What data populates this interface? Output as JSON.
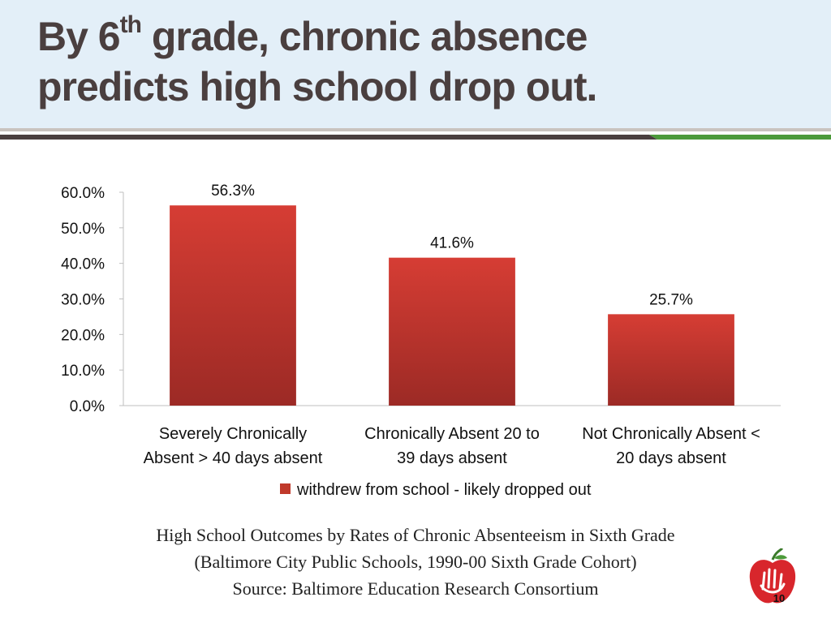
{
  "slide": {
    "title_part1": "By 6",
    "title_sup": "th",
    "title_part2": " grade, chronic absence",
    "title_line2": "predicts high school drop out.",
    "page_number": "10",
    "colors": {
      "header_bg": "#e3eff8",
      "title": "#4a3f3f",
      "rule_dark": "#4a3f3f",
      "rule_green": "#4c9a3a",
      "bar": "#c0392b"
    }
  },
  "caption": {
    "line1": "High School Outcomes by Rates of Chronic Absenteeism in Sixth Grade",
    "line2": "(Baltimore City Public Schools, 1990-00 Sixth Grade Cohort)",
    "line3": "Source: Baltimore Education Research Consortium"
  },
  "chart_data": {
    "type": "bar",
    "categories": [
      [
        "Severely Chronically",
        "Absent > 40 days absent"
      ],
      [
        "Chronically Absent 20 to",
        "39 days absent"
      ],
      [
        "Not Chronically Absent <",
        "20 days absent"
      ]
    ],
    "series": [
      {
        "name": "withdrew from school - likely dropped out",
        "values": [
          56.3,
          41.6,
          25.7
        ],
        "labels": [
          "56.3%",
          "41.6%",
          "25.7%"
        ],
        "color": "#c0392b"
      }
    ],
    "yticks": [
      "0.0%",
      "10.0%",
      "20.0%",
      "30.0%",
      "40.0%",
      "50.0%",
      "60.0%"
    ],
    "ylim": [
      0,
      60
    ],
    "legend_position": "bottom",
    "grid": false
  }
}
